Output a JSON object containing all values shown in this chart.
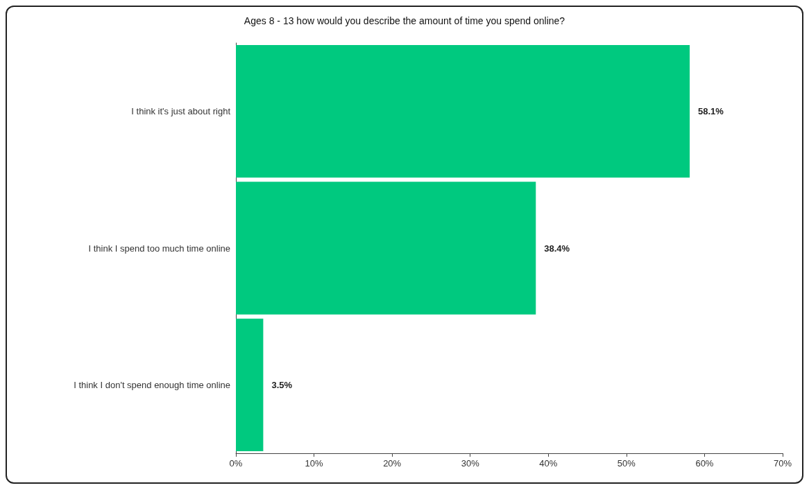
{
  "chart_data": {
    "type": "bar",
    "orientation": "horizontal",
    "title": "Ages 8 - 13 how would you describe the amount of time you spend online?",
    "categories": [
      "I think it's just about right",
      "I think I spend too much time online",
      "I think I don't spend enough time online"
    ],
    "values": [
      58.1,
      38.4,
      3.5
    ],
    "value_labels": [
      "58.1%",
      "38.4%",
      "3.5%"
    ],
    "color": "#00c97f",
    "xlim": [
      0,
      70
    ],
    "xticks": [
      {
        "value": 0,
        "label": "0%"
      },
      {
        "value": 10,
        "label": "10%"
      },
      {
        "value": 20,
        "label": "20%"
      },
      {
        "value": 30,
        "label": "30%"
      },
      {
        "value": 40,
        "label": "40%"
      },
      {
        "value": 50,
        "label": "50%"
      },
      {
        "value": 60,
        "label": "60%"
      },
      {
        "value": 70,
        "label": "70%"
      }
    ],
    "grid": false
  }
}
